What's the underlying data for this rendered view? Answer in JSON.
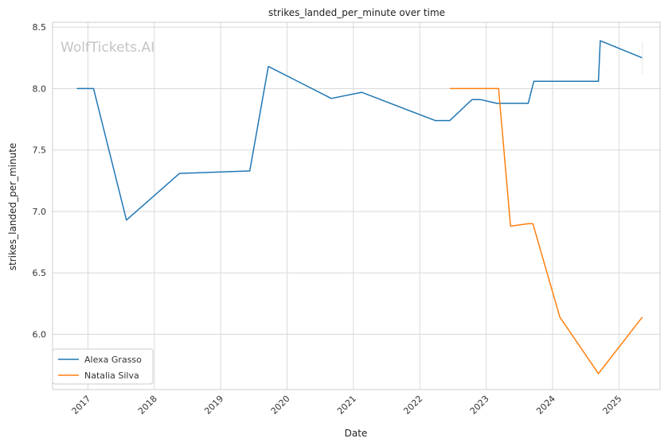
{
  "chart_data": {
    "type": "line",
    "title": "strikes_landed_per_minute over time",
    "xlabel": "Date",
    "ylabel": "strikes_landed_per_minute",
    "watermark": "WolfTickets.AI",
    "grid": true,
    "legend_position": "bottom-left",
    "x_ticks": [
      "2017",
      "2018",
      "2019",
      "2020",
      "2021",
      "2022",
      "2023",
      "2024",
      "2025"
    ],
    "y_ticks": [
      "6.0",
      "6.5",
      "7.0",
      "7.5",
      "8.0",
      "8.5"
    ],
    "xlim": [
      "2016-06-20",
      "2025-08-15"
    ],
    "ylim": [
      5.55,
      8.54
    ],
    "series": [
      {
        "name": "Alexa Grasso",
        "color": "#1f77b4",
        "points": [
          [
            "2016-11-01",
            8.0
          ],
          [
            "2017-02-01",
            8.0
          ],
          [
            "2017-08-01",
            6.93
          ],
          [
            "2018-05-20",
            7.31
          ],
          [
            "2019-06-10",
            7.33
          ],
          [
            "2019-09-20",
            8.18
          ],
          [
            "2020-09-01",
            7.92
          ],
          [
            "2021-02-15",
            7.97
          ],
          [
            "2022-03-26",
            7.74
          ],
          [
            "2022-06-15",
            7.74
          ],
          [
            "2022-10-15",
            7.91
          ],
          [
            "2022-12-01",
            7.91
          ],
          [
            "2023-03-01",
            7.88
          ],
          [
            "2023-08-20",
            7.88
          ],
          [
            "2023-09-20",
            8.06
          ],
          [
            "2024-09-10",
            8.06
          ],
          [
            "2024-09-20",
            8.39
          ],
          [
            "2025-05-10",
            8.25
          ]
        ]
      },
      {
        "name": "Natalia Silva",
        "color": "#ff7f0e",
        "points": [
          [
            "2022-06-15",
            8.0
          ],
          [
            "2023-03-10",
            8.0
          ],
          [
            "2023-05-15",
            6.88
          ],
          [
            "2023-08-20",
            6.9
          ],
          [
            "2023-09-15",
            6.9
          ],
          [
            "2024-02-10",
            6.14
          ],
          [
            "2024-09-10",
            5.68
          ],
          [
            "2025-05-10",
            6.14
          ]
        ]
      }
    ]
  }
}
